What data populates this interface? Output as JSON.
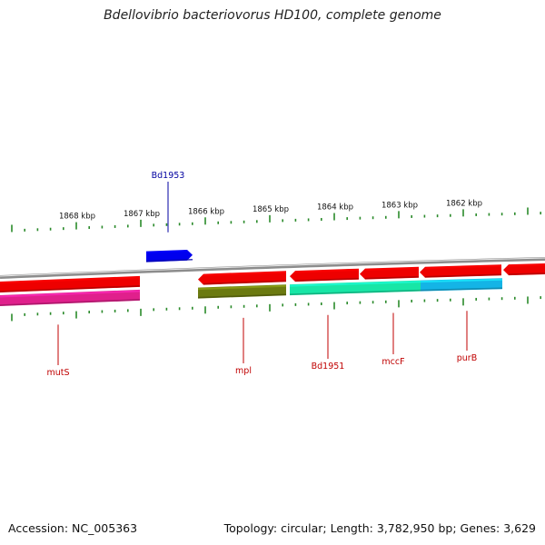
{
  "title": "Bdellovibrio bacteriovorus HD100, complete genome",
  "footer": {
    "accession": "Accession: NC_005363",
    "summary": "Topology: circular; Length: 3,782,950 bp; Genes: 3,629"
  },
  "colors": {
    "backbone": "#8c8c8c",
    "tick": "#2a8a2a",
    "label_red": "#c00000",
    "label_blue": "#0000a0"
  },
  "scale_labels": [
    "1868 kbp",
    "1867 kbp",
    "1866 kbp",
    "1865 kbp",
    "1864 kbp",
    "1863 kbp",
    "1862 kbp"
  ],
  "features": {
    "forward": [
      {
        "name": "Bd1953",
        "color": "#0000ee",
        "label_color": "#0000a0"
      }
    ],
    "reverse_cds": [
      {
        "color": "#ee0000"
      },
      {
        "color": "#ee0000"
      },
      {
        "color": "#ee0000"
      },
      {
        "color": "#ee0000"
      },
      {
        "color": "#ee0000"
      },
      {
        "color": "#ee0000"
      }
    ],
    "reverse_genes": [
      {
        "name": "mutS",
        "color": "#e0208c",
        "label_color": "#c00000"
      },
      {
        "name": "mpl",
        "color": "#6b7a10",
        "label_color": "#c00000"
      },
      {
        "name": "Bd1951",
        "color": "#18e6a6",
        "label_color": "#c00000"
      },
      {
        "name": "mccF",
        "color": "#18e6a6",
        "label_color": "#c00000"
      },
      {
        "name": "purB",
        "color": "#14b4e6",
        "label_color": "#c00000"
      }
    ]
  }
}
